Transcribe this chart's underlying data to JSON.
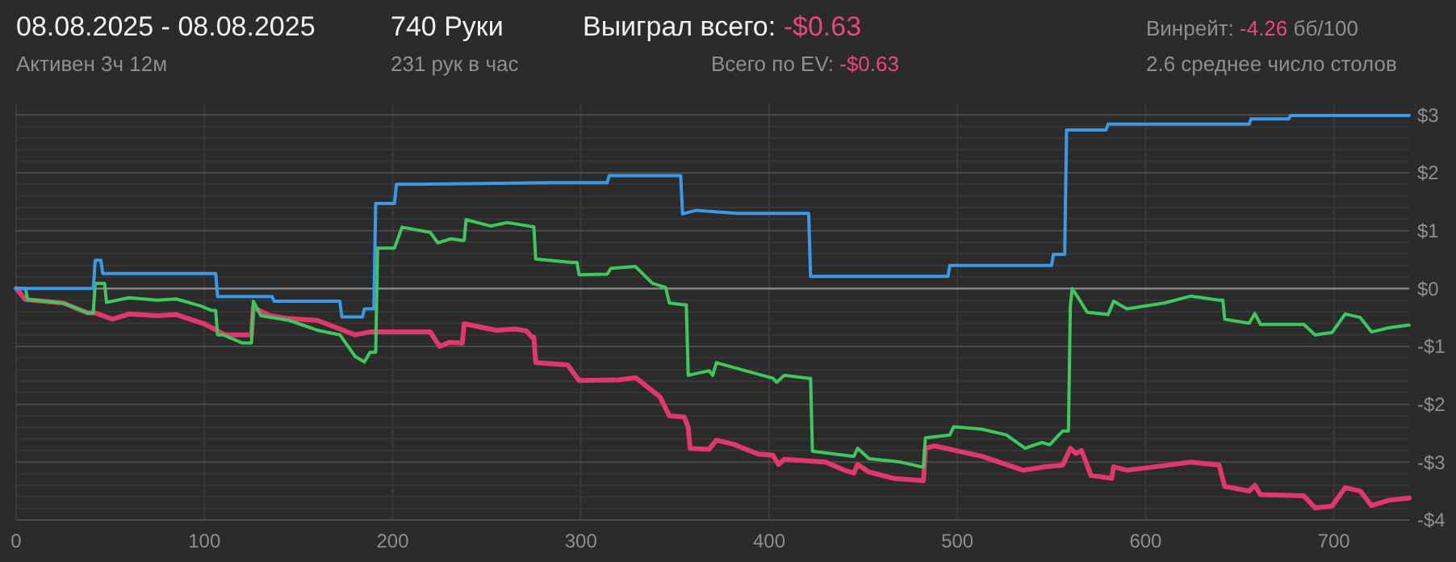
{
  "chart_data": {
    "type": "line",
    "title": "08.08.2025 - 08.08.2025",
    "annotations": [
      "Активен 3ч 12м",
      "740 Руки",
      "231 рук в час",
      "Выиграл всего: -$0.63",
      "Всего по EV: -$0.63",
      "Винрейт: -4.26 бб/100",
      "2.6 среднее число столов"
    ],
    "xlim": [
      0,
      740
    ],
    "xticks": [
      0,
      100,
      200,
      300,
      400,
      500,
      600,
      700
    ],
    "ylim": [
      -4,
      3.2
    ],
    "yticks": [
      {
        "value": -4,
        "label": "-$4"
      },
      {
        "value": -3.8,
        "label": null
      },
      {
        "value": -3.6,
        "label": null
      },
      {
        "value": -3.4,
        "label": null
      },
      {
        "value": -3.2,
        "label": null
      },
      {
        "value": -3,
        "label": "-$3"
      },
      {
        "value": -2.8,
        "label": null
      },
      {
        "value": -2.6,
        "label": null
      },
      {
        "value": -2.4,
        "label": null
      },
      {
        "value": -2.2,
        "label": null
      },
      {
        "value": -2,
        "label": "-$2"
      },
      {
        "value": -1.8,
        "label": null
      },
      {
        "value": -1.6,
        "label": null
      },
      {
        "value": -1.4,
        "label": null
      },
      {
        "value": -1.2,
        "label": null
      },
      {
        "value": -1,
        "label": "-$1"
      },
      {
        "value": -0.8,
        "label": null
      },
      {
        "value": -0.6,
        "label": null
      },
      {
        "value": -0.4,
        "label": null
      },
      {
        "value": -0.2,
        "label": null
      },
      {
        "value": 0,
        "label": "$0"
      },
      {
        "value": 0.2,
        "label": null
      },
      {
        "value": 0.4,
        "label": null
      },
      {
        "value": 0.6,
        "label": null
      },
      {
        "value": 0.8,
        "label": null
      },
      {
        "value": 1,
        "label": "$1"
      },
      {
        "value": 1.2,
        "label": null
      },
      {
        "value": 1.4,
        "label": null
      },
      {
        "value": 1.6,
        "label": null
      },
      {
        "value": 1.8,
        "label": null
      },
      {
        "value": 2,
        "label": "$2"
      },
      {
        "value": 2.2,
        "label": null
      },
      {
        "value": 2.4,
        "label": null
      },
      {
        "value": 2.6,
        "label": null
      },
      {
        "value": 2.8,
        "label": null
      },
      {
        "value": 3,
        "label": "$3"
      }
    ],
    "grid": true,
    "marker": "none",
    "line_style": "solid",
    "ref_lines": [
      {
        "axis": "y",
        "value": 0,
        "label": null,
        "color": "#8a8a8a"
      }
    ],
    "series": [
      {
        "color": "#e0386a",
        "x": [
          0,
          5,
          25,
          38,
          42,
          51,
          60,
          75,
          85,
          100,
          111,
          122,
          125,
          126,
          135,
          145,
          160,
          180,
          188,
          220,
          225,
          230,
          237,
          238,
          255,
          265,
          271,
          274,
          275,
          276,
          293,
          299,
          320,
          329,
          342,
          347,
          355,
          357,
          358,
          368,
          372,
          381,
          394,
          402,
          405,
          408,
          430,
          440,
          445,
          447,
          453,
          466,
          482,
          483,
          488,
          513,
          535,
          547,
          556,
          560,
          563,
          566,
          571,
          582,
          583,
          590,
          610,
          624,
          639,
          642,
          655,
          658,
          661,
          684,
          690,
          699,
          706,
          714,
          720,
          729,
          740
        ],
        "values": [
          0,
          -0.19,
          -0.25,
          -0.42,
          -0.42,
          -0.53,
          -0.44,
          -0.47,
          -0.45,
          -0.61,
          -0.8,
          -0.8,
          -0.8,
          -0.33,
          -0.47,
          -0.52,
          -0.55,
          -0.8,
          -0.75,
          -0.75,
          -1.0,
          -0.93,
          -0.94,
          -0.61,
          -0.72,
          -0.7,
          -0.73,
          -0.84,
          -0.84,
          -1.28,
          -1.32,
          -1.59,
          -1.58,
          -1.54,
          -1.87,
          -2.2,
          -2.22,
          -2.4,
          -2.76,
          -2.78,
          -2.62,
          -2.69,
          -2.86,
          -2.88,
          -3.04,
          -2.95,
          -3.0,
          -3.14,
          -3.19,
          -3.04,
          -3.17,
          -3.28,
          -3.32,
          -2.76,
          -2.72,
          -2.9,
          -3.14,
          -3.08,
          -3.05,
          -2.76,
          -2.85,
          -2.8,
          -3.23,
          -3.28,
          -3.08,
          -3.14,
          -3.06,
          -3.0,
          -3.05,
          -3.42,
          -3.5,
          -3.4,
          -3.56,
          -3.58,
          -3.79,
          -3.76,
          -3.44,
          -3.5,
          -3.75,
          -3.66,
          -3.62
        ]
      },
      {
        "color": "#3cc85a",
        "x": [
          0,
          5,
          6,
          25,
          38,
          41,
          42,
          47,
          48,
          60,
          75,
          85,
          98,
          104,
          106,
          107,
          110,
          120,
          125,
          126,
          130,
          145,
          160,
          172,
          180,
          185,
          188,
          191,
          192,
          201,
          205,
          220,
          224,
          231,
          237,
          238,
          239,
          252,
          261,
          274,
          275,
          276,
          295,
          298,
          299,
          314,
          316,
          329,
          338,
          345,
          347,
          355,
          356,
          357,
          368,
          370,
          372,
          385,
          402,
          404,
          408,
          421,
          422,
          423,
          445,
          447,
          453,
          470,
          482,
          483,
          496,
          498,
          513,
          526,
          536,
          545,
          549,
          556,
          559,
          560,
          561,
          564,
          569,
          580,
          582,
          583,
          590,
          610,
          624,
          639,
          641,
          642,
          655,
          658,
          661,
          684,
          690,
          699,
          706,
          714,
          720,
          729,
          740
        ],
        "values": [
          0,
          0,
          -0.19,
          -0.25,
          -0.42,
          -0.42,
          0.09,
          0.09,
          -0.24,
          -0.16,
          -0.2,
          -0.18,
          -0.3,
          -0.38,
          -0.38,
          -0.8,
          -0.8,
          -0.94,
          -0.94,
          -0.22,
          -0.47,
          -0.55,
          -0.72,
          -0.8,
          -1.17,
          -1.27,
          -1.1,
          -1.1,
          0.7,
          0.7,
          1.06,
          0.97,
          0.79,
          0.86,
          0.83,
          0.83,
          1.19,
          1.08,
          1.14,
          1.07,
          1.07,
          0.51,
          0.45,
          0.45,
          0.24,
          0.25,
          0.35,
          0.38,
          0.09,
          0.02,
          -0.25,
          -0.28,
          -0.28,
          -1.5,
          -1.42,
          -1.5,
          -1.28,
          -1.4,
          -1.55,
          -1.62,
          -1.5,
          -1.55,
          -1.55,
          -2.81,
          -2.9,
          -2.76,
          -2.94,
          -3.0,
          -3.09,
          -2.58,
          -2.53,
          -2.39,
          -2.43,
          -2.53,
          -2.76,
          -2.66,
          -2.7,
          -2.46,
          -2.46,
          -0.3,
          0.0,
          -0.15,
          -0.41,
          -0.45,
          -0.3,
          -0.22,
          -0.35,
          -0.25,
          -0.13,
          -0.2,
          -0.2,
          -0.53,
          -0.6,
          -0.43,
          -0.62,
          -0.62,
          -0.8,
          -0.76,
          -0.44,
          -0.5,
          -0.75,
          -0.68,
          -0.63
        ]
      },
      {
        "color": "#3a9ae8",
        "x": [
          0,
          41,
          42,
          45,
          46,
          106,
          107,
          136,
          137,
          172,
          173,
          184,
          185,
          190,
          191,
          201,
          202,
          285,
          314,
          315,
          353,
          354,
          361,
          383,
          421,
          422,
          495,
          496,
          550,
          551,
          557,
          558,
          579,
          580,
          655,
          656,
          676,
          677,
          740
        ],
        "values": [
          0,
          0,
          0.49,
          0.49,
          0.26,
          0.26,
          -0.14,
          -0.14,
          -0.22,
          -0.22,
          -0.49,
          -0.49,
          -0.35,
          -0.35,
          1.47,
          1.47,
          1.8,
          1.83,
          1.83,
          1.95,
          1.95,
          1.29,
          1.35,
          1.3,
          1.3,
          0.21,
          0.21,
          0.4,
          0.4,
          0.59,
          0.59,
          2.74,
          2.74,
          2.84,
          2.84,
          2.93,
          2.93,
          2.99,
          2.99
        ]
      }
    ]
  }
}
